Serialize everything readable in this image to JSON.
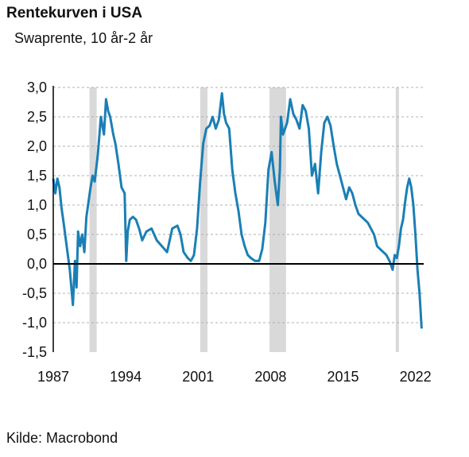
{
  "title": "Rentekurven i USA",
  "subtitle": "Swaprente, 10 år-2 år",
  "source": "Kilde: Macrobond",
  "colors": {
    "line": "#1a7fb5",
    "recession": "#d9d9d9",
    "grid": "#b0b0b0",
    "axis": "#000000"
  },
  "chart_data": {
    "type": "line",
    "title": "Rentekurven i USA",
    "subtitle": "Swaprente, 10 år-2 år",
    "ylabel": "",
    "xlabel": "",
    "xlim": [
      1987,
      2022.8
    ],
    "ylim": [
      -1.5,
      3.0
    ],
    "x_ticks": [
      {
        "value": 1987,
        "label": "1987"
      },
      {
        "value": 1994,
        "label": "1994"
      },
      {
        "value": 2001,
        "label": "2001"
      },
      {
        "value": 2008,
        "label": "2008"
      },
      {
        "value": 2015,
        "label": "2015"
      },
      {
        "value": 2022,
        "label": "2022"
      }
    ],
    "y_ticks": [
      {
        "value": 3.0,
        "label": "3,0"
      },
      {
        "value": 2.5,
        "label": "2,5"
      },
      {
        "value": 2.0,
        "label": "2,0"
      },
      {
        "value": 1.5,
        "label": "1,5"
      },
      {
        "value": 1.0,
        "label": "1,0"
      },
      {
        "value": 0.5,
        "label": "0,5"
      },
      {
        "value": 0.0,
        "label": "0,0"
      },
      {
        "value": -0.5,
        "label": "-0,5"
      },
      {
        "value": -1.0,
        "label": "-1,0"
      },
      {
        "value": -1.5,
        "label": "-1,5"
      }
    ],
    "grid": "horizontal dashed",
    "recessions": [
      [
        1990.5,
        1991.2
      ],
      [
        2001.2,
        2001.9
      ],
      [
        2007.9,
        2009.5
      ],
      [
        2020.1,
        2020.4
      ]
    ],
    "series": [
      {
        "x": [
          1987.0,
          1987.2,
          1987.4,
          1987.6,
          1987.8,
          1988.0,
          1988.3,
          1988.6,
          1988.9,
          1989.1,
          1989.25,
          1989.4,
          1989.6,
          1989.8,
          1990.0,
          1990.2,
          1990.4,
          1990.6,
          1990.8,
          1991.0,
          1991.3,
          1991.6,
          1991.9,
          1992.1,
          1992.3,
          1992.5,
          1992.8,
          1993.0,
          1993.3,
          1993.6,
          1993.9,
          1994.05,
          1994.2,
          1994.4,
          1994.7,
          1995.0,
          1995.3,
          1995.6,
          1996.0,
          1996.5,
          1997.0,
          1997.5,
          1998.0,
          1998.5,
          1999.0,
          1999.3,
          1999.6,
          2000.0,
          2000.3,
          2000.6,
          2000.9,
          2001.2,
          2001.5,
          2001.8,
          2002.1,
          2002.4,
          2002.7,
          2003.0,
          2003.3,
          2003.5,
          2003.7,
          2004.0,
          2004.3,
          2004.6,
          2004.9,
          2005.2,
          2005.5,
          2005.8,
          2006.1,
          2006.5,
          2006.9,
          2007.2,
          2007.5,
          2007.8,
          2008.1,
          2008.4,
          2008.7,
          2008.9,
          2009.0,
          2009.2,
          2009.4,
          2009.6,
          2009.9,
          2010.2,
          2010.5,
          2010.8,
          2011.1,
          2011.4,
          2011.7,
          2012.0,
          2012.3,
          2012.6,
          2012.9,
          2013.2,
          2013.5,
          2013.8,
          2014.1,
          2014.4,
          2014.7,
          2015.0,
          2015.3,
          2015.6,
          2015.9,
          2016.2,
          2016.5,
          2016.8,
          2017.1,
          2017.4,
          2017.7,
          2018.0,
          2018.3,
          2018.6,
          2018.9,
          2019.2,
          2019.5,
          2019.8,
          2020.0,
          2020.2,
          2020.4,
          2020.6,
          2020.8,
          2021.0,
          2021.2,
          2021.4,
          2021.6,
          2021.8,
          2022.0,
          2022.2,
          2022.4,
          2022.6
        ],
        "y": [
          1.45,
          1.2,
          1.45,
          1.3,
          0.95,
          0.7,
          0.3,
          -0.1,
          -0.7,
          0.05,
          -0.4,
          0.55,
          0.3,
          0.5,
          0.2,
          0.8,
          1.05,
          1.3,
          1.5,
          1.4,
          1.85,
          2.5,
          2.2,
          2.8,
          2.6,
          2.5,
          2.2,
          2.05,
          1.7,
          1.3,
          1.2,
          0.05,
          0.55,
          0.75,
          0.8,
          0.75,
          0.6,
          0.4,
          0.55,
          0.6,
          0.4,
          0.3,
          0.2,
          0.6,
          0.65,
          0.5,
          0.2,
          0.1,
          0.05,
          0.15,
          0.6,
          1.4,
          2.05,
          2.3,
          2.35,
          2.5,
          2.3,
          2.45,
          2.9,
          2.55,
          2.4,
          2.3,
          1.6,
          1.2,
          0.9,
          0.5,
          0.3,
          0.15,
          0.1,
          0.05,
          0.05,
          0.25,
          0.7,
          1.6,
          1.9,
          1.4,
          1.0,
          1.6,
          2.5,
          2.2,
          2.3,
          2.4,
          2.8,
          2.55,
          2.45,
          2.3,
          2.7,
          2.6,
          2.3,
          1.5,
          1.7,
          1.2,
          1.9,
          2.4,
          2.5,
          2.35,
          2.0,
          1.7,
          1.5,
          1.3,
          1.1,
          1.3,
          1.2,
          1.0,
          0.85,
          0.8,
          0.75,
          0.7,
          0.6,
          0.5,
          0.3,
          0.25,
          0.2,
          0.15,
          0.05,
          -0.1,
          0.15,
          0.1,
          0.3,
          0.6,
          0.75,
          1.05,
          1.3,
          1.45,
          1.3,
          1.0,
          0.5,
          -0.1,
          -0.5,
          -1.1
        ]
      }
    ]
  }
}
